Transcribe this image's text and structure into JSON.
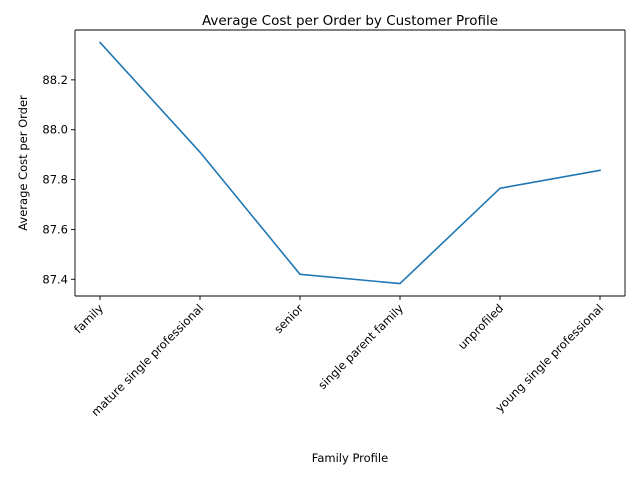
{
  "chart_data": {
    "type": "line",
    "title": "Average Cost per Order by Customer Profile",
    "xlabel": "Family Profile",
    "ylabel": "Average Cost per Order",
    "categories": [
      "family",
      "mature single professional",
      "senior",
      "single parent family",
      "unprofiled",
      "young single professional"
    ],
    "series": [
      {
        "values": [
          88.35,
          87.91,
          87.42,
          87.383,
          87.765,
          87.837
        ]
      }
    ],
    "ylim": [
      87.333,
      88.4
    ],
    "yticks": [
      87.4,
      87.6,
      87.8,
      88.0,
      88.2
    ],
    "ytick_labels": [
      "87.4",
      "87.6",
      "87.8",
      "88.0",
      "88.2"
    ],
    "grid": false,
    "colors": {
      "series": "#1f77b4"
    }
  }
}
